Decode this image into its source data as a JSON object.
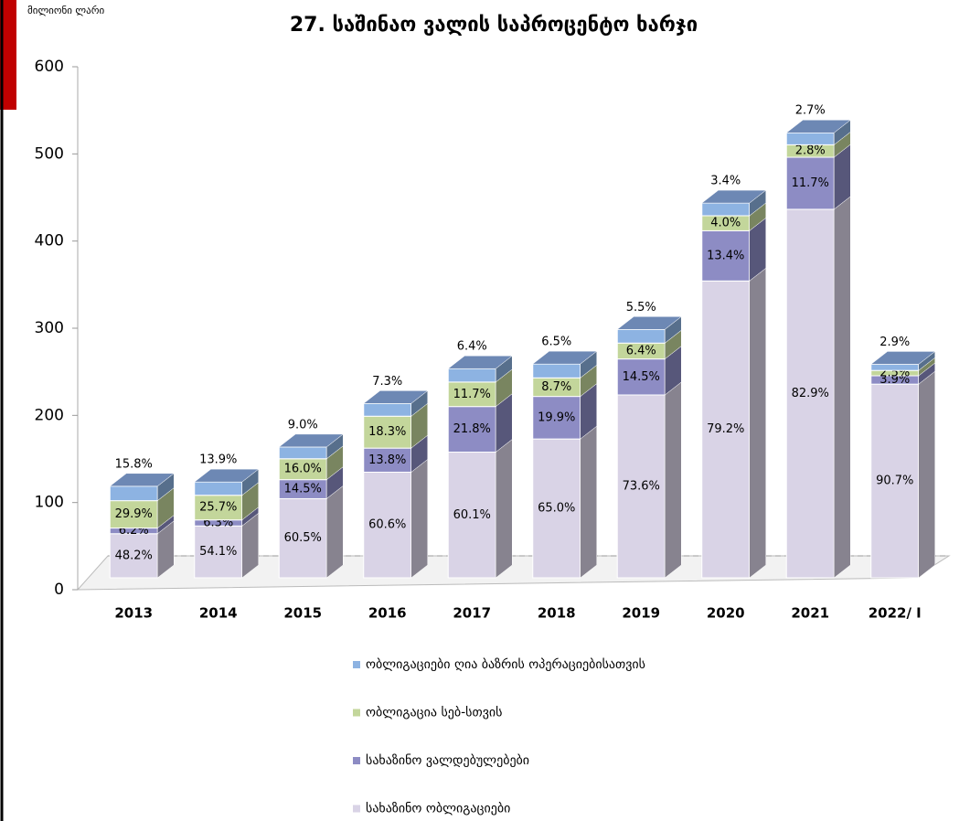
{
  "chart_data": {
    "type": "bar3d_stacked",
    "title": "27. საშინაო ვალის საპროცენტო ხარჯი",
    "y_label": "მილიონი ლარი",
    "categories": [
      "2013",
      "2014",
      "2015",
      "2016",
      "2017",
      "2018",
      "2019",
      "2020",
      "2021",
      "2022/ I"
    ],
    "ylim": [
      0,
      600
    ],
    "yticks": [
      0,
      100,
      200,
      300,
      400,
      500,
      600
    ],
    "grid": false,
    "series": [
      {
        "name": "სახაზინო ობლიგაციები",
        "color": "#d9d3e6",
        "values": [
          50.6,
          59.5,
          90.8,
          121.2,
          144.2,
          159.3,
          209.8,
          340.6,
          422.8,
          222.2
        ],
        "value_labels": [
          "48.2%",
          "54.1%",
          "60.5%",
          "60.6%",
          "60.1%",
          "65.0%",
          "73.6%",
          "79.2%",
          "82.9%",
          "90.7%"
        ]
      },
      {
        "name": "სახაზინო ვალდებულებები",
        "color": "#8d8cc4",
        "values": [
          6.5,
          6.9,
          21.8,
          27.6,
          52.3,
          48.8,
          41.3,
          57.6,
          59.7,
          9.6
        ],
        "value_labels": [
          "6.2%",
          "6.3%",
          "14.5%",
          "13.8%",
          "21.8%",
          "19.9%",
          "14.5%",
          "13.4%",
          "11.7%",
          "3.9%"
        ]
      },
      {
        "name": "ობლიგაცია სებ-სთვის",
        "color": "#c3d69b",
        "values": [
          31.4,
          28.3,
          24.0,
          36.6,
          28.1,
          21.3,
          18.2,
          17.2,
          14.3,
          6.1
        ],
        "value_labels": [
          "29.9%",
          "25.7%",
          "16.0%",
          "18.3%",
          "11.7%",
          "8.7%",
          "6.4%",
          "4.0%",
          "2.8%",
          "2.5%"
        ]
      },
      {
        "name": "ობლიგაციები ღია ბაზრის ოპერაციებისათვის",
        "color": "#8db3e2",
        "values": [
          16.6,
          15.3,
          13.5,
          14.6,
          15.4,
          15.9,
          15.7,
          14.6,
          13.8,
          7.1
        ],
        "value_labels": [
          "15.8%",
          "13.9%",
          "9.0%",
          "7.3%",
          "6.4%",
          "6.5%",
          "5.5%",
          "3.4%",
          "2.7%",
          "2.9%"
        ]
      }
    ]
  }
}
